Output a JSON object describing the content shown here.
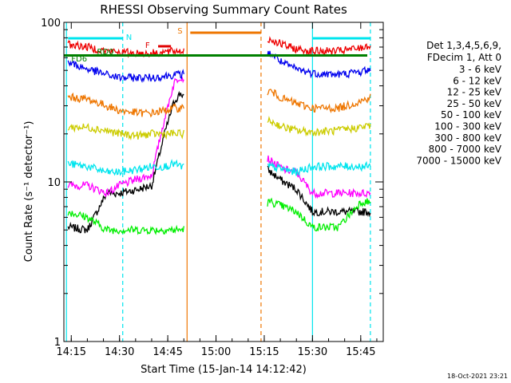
{
  "chart_data": {
    "type": "line",
    "title": "RHESSI Observing Summary Count Rates",
    "xlabel": "Start Time (15-Jan-14 14:12:42)",
    "ylabel": "Count Rate (s⁻¹ detector⁻¹)",
    "y_scale": "log",
    "ylim": [
      1,
      100
    ],
    "xlim_minutes": [
      "14:12:42",
      "15:52"
    ],
    "x_tick_labels": [
      "14:15",
      "14:30",
      "14:45",
      "15:00",
      "15:15",
      "15:30",
      "15:45"
    ],
    "y_tick_labels": [
      "1",
      "10",
      "100"
    ],
    "legend_header": [
      "Det 1,3,4,5,6,9,",
      "FDecim 1, Att 0"
    ],
    "legend_position": "right",
    "stamp": "18-Oct-2021 23:21",
    "flag_labels": {
      "night": "N",
      "saa": "S",
      "flare": "F",
      "decim": "RD0",
      "fdecim": "FD6"
    },
    "colors": {
      "green_band": "#008000",
      "cyan": "#00e5ee",
      "orange": "#ee7600",
      "red": "#e00000",
      "night_line": "#00e5ee",
      "saa_line": "#ee7600"
    },
    "series": [
      {
        "name": "3 - 6 keV",
        "color": "#000000",
        "x": [
          "14:14",
          "14:20",
          "14:26",
          "14:30",
          "14:36",
          "14:40",
          "14:44",
          "14:47",
          "14:49",
          "15:17",
          "15:21",
          "15:25",
          "15:30",
          "15:38",
          "15:45",
          "15:48"
        ],
        "y": [
          5.2,
          5.0,
          8.5,
          8.5,
          9.0,
          9.5,
          20,
          32,
          36,
          11.5,
          10,
          9.0,
          6.5,
          6.5,
          6.5,
          6.5
        ]
      },
      {
        "name": "6 - 12 keV",
        "color": "#ff00ff",
        "x": [
          "14:14",
          "14:20",
          "14:26",
          "14:30",
          "14:36",
          "14:40",
          "14:44",
          "14:47",
          "14:49",
          "15:17",
          "15:21",
          "15:25",
          "15:30",
          "15:38",
          "15:45",
          "15:48"
        ],
        "y": [
          9.5,
          9.5,
          8.5,
          9.5,
          10.5,
          11,
          25,
          42,
          46,
          13.5,
          12,
          11.5,
          8.5,
          8.5,
          8.5,
          8.5
        ]
      },
      {
        "name": "12 - 25 keV",
        "color": "#00ee00",
        "x": [
          "14:14",
          "14:20",
          "14:26",
          "14:30",
          "14:36",
          "14:40",
          "14:44",
          "14:47",
          "14:49",
          "15:17",
          "15:21",
          "15:25",
          "15:30",
          "15:38",
          "15:45",
          "15:48"
        ],
        "y": [
          6.5,
          6.0,
          5.0,
          5.0,
          5.0,
          5.0,
          5.0,
          5.0,
          5.0,
          7.5,
          7.0,
          6.5,
          5.2,
          5.2,
          7.5,
          7.5
        ]
      },
      {
        "name": "25 - 50 keV",
        "color": "#00e5ee",
        "x": [
          "14:14",
          "14:20",
          "14:26",
          "14:30",
          "14:36",
          "14:40",
          "14:44",
          "14:47",
          "14:49",
          "15:17",
          "15:21",
          "15:25",
          "15:30",
          "15:38",
          "15:45",
          "15:48"
        ],
        "y": [
          13,
          12.5,
          11.5,
          11.5,
          12,
          12.5,
          12.5,
          13,
          12.5,
          12.5,
          12,
          11.5,
          12.5,
          12.5,
          12.5,
          12.5
        ]
      },
      {
        "name": "50 - 100 keV",
        "color": "#cccc00",
        "x": [
          "14:14",
          "14:20",
          "14:26",
          "14:30",
          "14:36",
          "14:40",
          "14:44",
          "14:47",
          "14:49",
          "15:17",
          "15:21",
          "15:25",
          "15:30",
          "15:38",
          "15:45",
          "15:48"
        ],
        "y": [
          22,
          22,
          21,
          20,
          19.5,
          20,
          20,
          20,
          20,
          24,
          22,
          21,
          20.5,
          21,
          22,
          22.5
        ]
      },
      {
        "name": "100 - 300 keV",
        "color": "#ee7600",
        "x": [
          "14:14",
          "14:20",
          "14:26",
          "14:30",
          "14:36",
          "14:40",
          "14:44",
          "14:47",
          "14:49",
          "15:17",
          "15:21",
          "15:25",
          "15:30",
          "15:38",
          "15:45",
          "15:48"
        ],
        "y": [
          34,
          33,
          30,
          28,
          27,
          27,
          28,
          29,
          29,
          37,
          33,
          31,
          29,
          29,
          32,
          34
        ]
      },
      {
        "name": "300 - 800 keV",
        "color": "#0000ee",
        "x": [
          "14:14",
          "14:20",
          "14:26",
          "14:30",
          "14:36",
          "14:40",
          "14:44",
          "14:47",
          "14:49",
          "15:17",
          "15:21",
          "15:25",
          "15:30",
          "15:38",
          "15:45",
          "15:48"
        ],
        "y": [
          56,
          51,
          47,
          45,
          45,
          45,
          46,
          47,
          47,
          64,
          55,
          51,
          48,
          47,
          49,
          51
        ]
      },
      {
        "name": "800 - 7000 keV",
        "color": "#ee0000",
        "x": [
          "14:14",
          "14:20",
          "14:26",
          "14:30",
          "14:36",
          "14:40",
          "14:44",
          "14:47",
          "14:49",
          "15:17",
          "15:21",
          "15:25",
          "15:30",
          "15:38",
          "15:45",
          "15:48"
        ],
        "y": [
          73,
          70,
          66,
          65,
          64,
          64,
          65,
          66,
          66,
          78,
          72,
          68,
          66,
          66,
          69,
          72
        ]
      },
      {
        "name": "7000 - 15000 keV",
        "color": "#8b7500",
        "x": [],
        "y": []
      }
    ]
  }
}
